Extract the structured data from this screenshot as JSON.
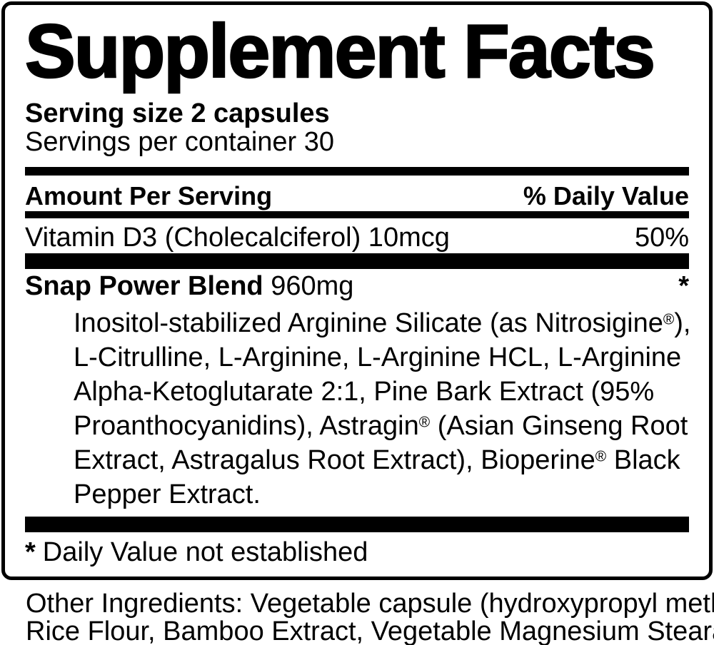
{
  "label": {
    "title": "Supplement Facts",
    "serving_size": "Serving size 2 capsules",
    "servings_per_container": "Servings per container 30",
    "column_headers": {
      "amount": "Amount Per Serving",
      "daily_value": "% Daily Value"
    },
    "nutrients": [
      {
        "name": "Vitamin D3 (Cholecalciferol) 10mcg",
        "daily_value": "50%"
      }
    ],
    "blend": {
      "name": "Snap Power Blend",
      "amount": "960mg",
      "daily_value": "*",
      "ingredients_lines": [
        "Inositol-stabilized Arginine Silicate (as Nitrosigine®),",
        "L-Citrulline, L-Arginine, L-Arginine HCL, L-Arginine",
        "Alpha-Ketoglutarate 2:1, Pine Bark Extract (95%",
        "Proanthocyanidins), Astragin® (Asian Ginseng Root",
        "Extract, Astragalus Root Extract), Bioperine® Black",
        "Pepper Extract."
      ]
    },
    "footnote": {
      "marker": "*",
      "text": "Daily Value not established"
    },
    "other_ingredients_lines": [
      "Other Ingredients: Vegetable capsule (hydroxypropyl methylcellulose),",
      "Rice Flour, Bamboo Extract, Vegetable Magnesium Stearate"
    ],
    "colors": {
      "text": "#000000",
      "background": "#ffffff",
      "rule": "#000000"
    }
  }
}
